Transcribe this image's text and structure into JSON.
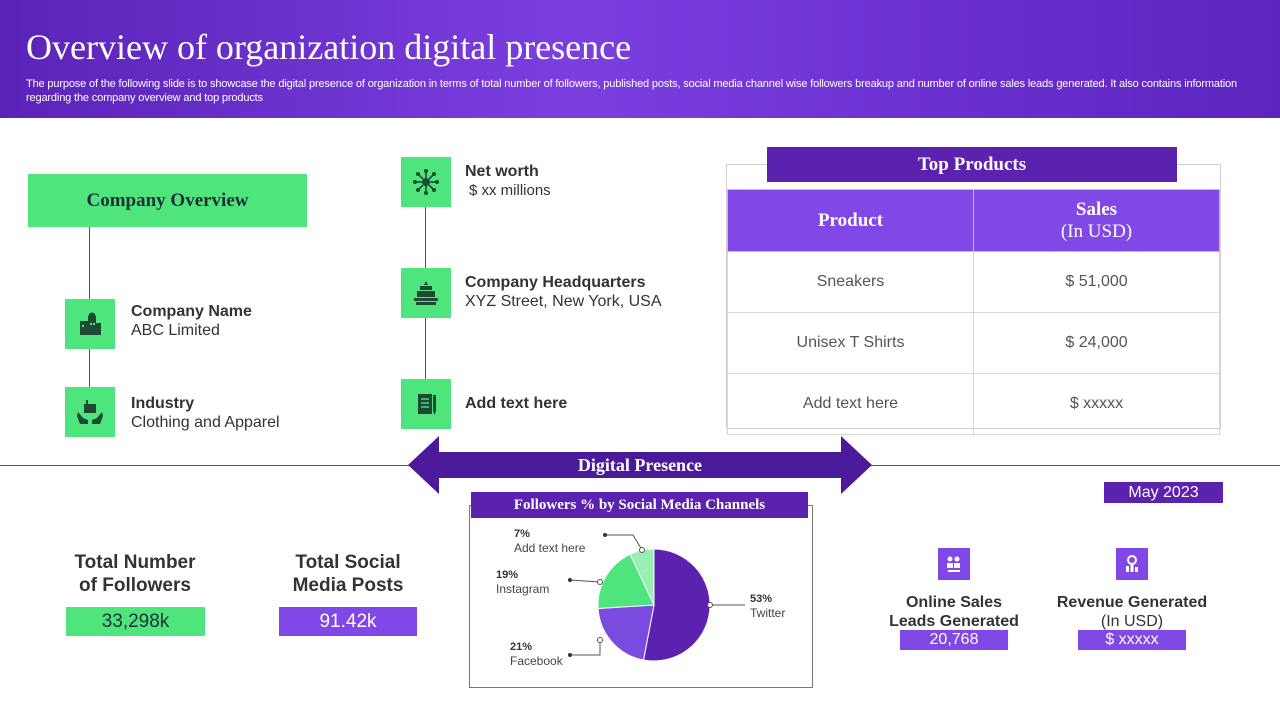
{
  "header": {
    "title": "Overview of organization digital presence",
    "subtitle": "The purpose of the following slide is to showcase the digital presence of organization in terms of total number of followers, published posts, social media channel wise followers breakup and number of online sales leads generated. It also contains information regarding the company overview and top products"
  },
  "company_overview": {
    "heading": "Company Overview",
    "items": [
      {
        "title": "Company Name",
        "value": "ABC Limited",
        "icon": "building-icon"
      },
      {
        "title": "Industry",
        "value": "Clothing and Apparel",
        "icon": "hands-factory-icon"
      }
    ]
  },
  "details": [
    {
      "title": "Net worth",
      "value": "$ xx millions",
      "icon": "network-icon"
    },
    {
      "title": "Company Headquarters",
      "value": "XYZ Street, New York, USA",
      "icon": "headquarters-icon"
    },
    {
      "title": "Add text here",
      "value": "",
      "icon": "notepad-icon"
    }
  ],
  "top_products": {
    "title": "Top Products",
    "columns": [
      "Product",
      "Sales",
      "(In USD)"
    ],
    "rows": [
      {
        "product": "Sneakers",
        "sales": "$ 51,000"
      },
      {
        "product": "Unisex T Shirts",
        "sales": "$ 24,000"
      },
      {
        "product": "Add text here",
        "sales": "$ xxxxx"
      }
    ]
  },
  "digital_presence": {
    "label": "Digital Presence"
  },
  "metrics": {
    "followers": {
      "title_line1": "Total Number",
      "title_line2": "of Followers",
      "value": "33,298k"
    },
    "posts": {
      "title_line1": "Total Social",
      "title_line2": "Media Posts",
      "value": "91.42k"
    }
  },
  "pie": {
    "title": "Followers % by Social Media Channels",
    "slices": [
      {
        "label": "Twitter",
        "pct_label": "53%",
        "value": 53,
        "color": "#5b22b0"
      },
      {
        "label": "Facebook",
        "pct_label": "21%",
        "value": 21,
        "color": "#7b4be0"
      },
      {
        "label": "Instagram",
        "pct_label": "19%",
        "value": 19,
        "color": "#4ee57c"
      },
      {
        "label": "Add text here",
        "pct_label": "7%",
        "value": 7,
        "color": "#9af0b4"
      }
    ]
  },
  "date_label": "May 2023",
  "sales_leads": {
    "title_line1": "Online Sales",
    "title_line2": "Leads Generated",
    "value": "20,768",
    "icon": "people-chart-icon"
  },
  "revenue": {
    "title_line1": "Revenue Generated",
    "title_line2": "(In USD)",
    "value": "$ xxxxx",
    "icon": "gear-chart-icon"
  },
  "colors": {
    "purple_dark": "#5b22b0",
    "purple": "#8048e6",
    "green": "#4ee57c"
  }
}
